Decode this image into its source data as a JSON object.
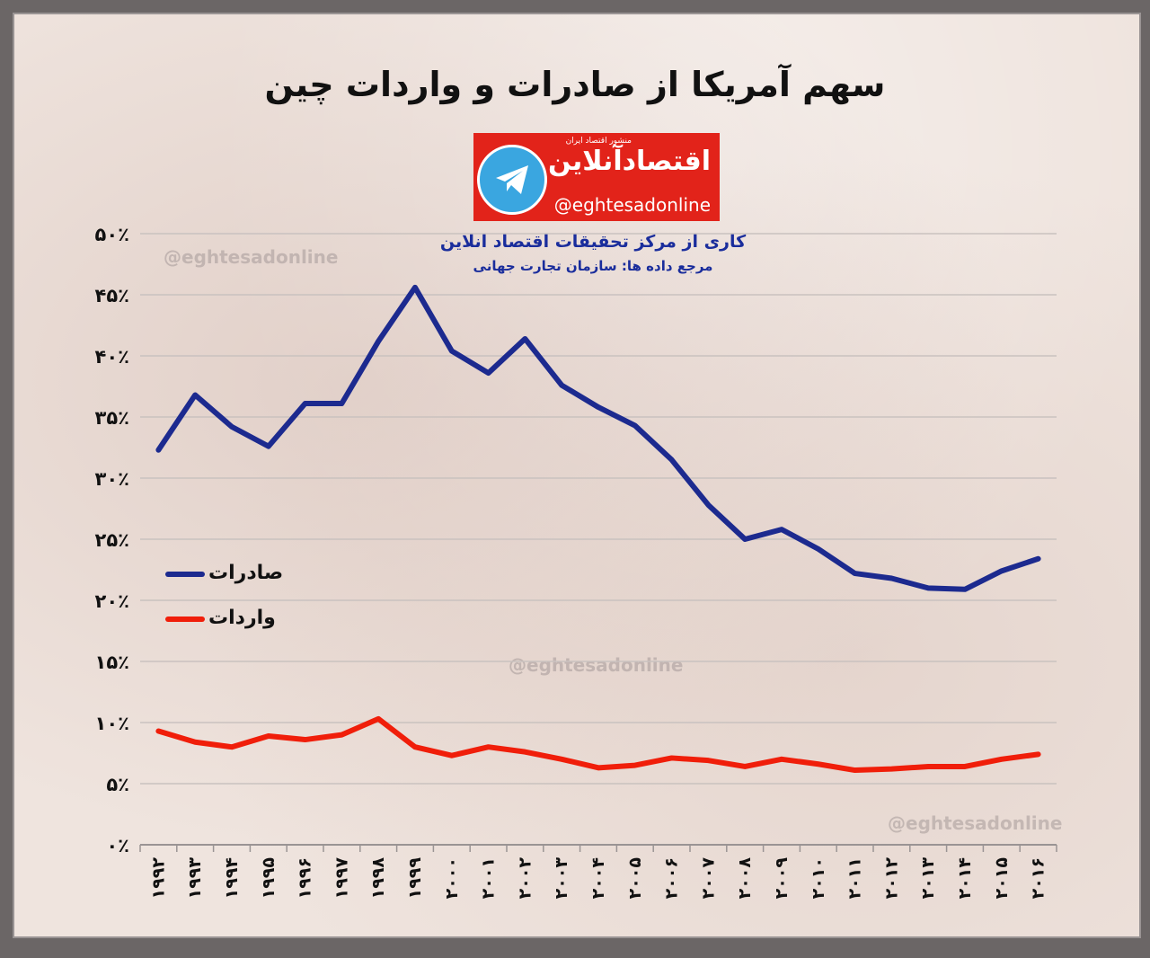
{
  "title": "سهم آمریکا از صادرات و واردات چین",
  "logo": {
    "tagline": "منشور اقتصاد ایران",
    "brand": "اقتصادآنلاین",
    "handle": "@eghtesadonline"
  },
  "credit_line1": "کاری از مرکز تحقیقات اقتصاد انلاین",
  "credit_line2": "مرجع داده ها: سازمان تجارت جهانی",
  "watermark": "@eghtesadonline",
  "colors": {
    "exports": "#1c2a8f",
    "imports": "#f01e0a",
    "grid": "#c9c2bf"
  },
  "chart_data": {
    "type": "line",
    "title": "سهم آمریکا از صادرات و واردات چین",
    "x": [
      "۱۹۹۲",
      "۱۹۹۳",
      "۱۹۹۴",
      "۱۹۹۵",
      "۱۹۹۶",
      "۱۹۹۷",
      "۱۹۹۸",
      "۱۹۹۹",
      "۲۰۰۰",
      "۲۰۰۱",
      "۲۰۰۲",
      "۲۰۰۳",
      "۲۰۰۴",
      "۲۰۰۵",
      "۲۰۰۶",
      "۲۰۰۷",
      "۲۰۰۸",
      "۲۰۰۹",
      "۲۰۱۰",
      "۲۰۱۱",
      "۲۰۱۲",
      "۲۰۱۳",
      "۲۰۱۴",
      "۲۰۱۵",
      "۲۰۱۶"
    ],
    "y_ticks": [
      "۰٪",
      "۵٪",
      "۱۰٪",
      "۱۵٪",
      "۲۰٪",
      "۲۵٪",
      "۳۰٪",
      "۳۵٪",
      "۴۰٪",
      "۴۵٪",
      "۵۰٪"
    ],
    "ylim": [
      0,
      50
    ],
    "grid": true,
    "legend_position": "left",
    "series": [
      {
        "name": "صادرات",
        "values": [
          32.3,
          36.8,
          34.2,
          32.6,
          36.1,
          36.1,
          41.2,
          45.6,
          40.4,
          38.6,
          41.4,
          37.6,
          35.8,
          34.3,
          31.5,
          27.8,
          25.0,
          25.8,
          24.2,
          22.2,
          21.8,
          21.0,
          20.9,
          22.4,
          23.4
        ]
      },
      {
        "name": "واردات",
        "values": [
          9.3,
          8.4,
          8.0,
          8.9,
          8.6,
          9.0,
          10.3,
          8.0,
          7.3,
          8.0,
          7.6,
          7.0,
          6.3,
          6.5,
          7.1,
          6.9,
          6.4,
          7.0,
          6.6,
          6.1,
          6.2,
          6.4,
          6.4,
          7.0,
          7.4
        ]
      }
    ]
  }
}
